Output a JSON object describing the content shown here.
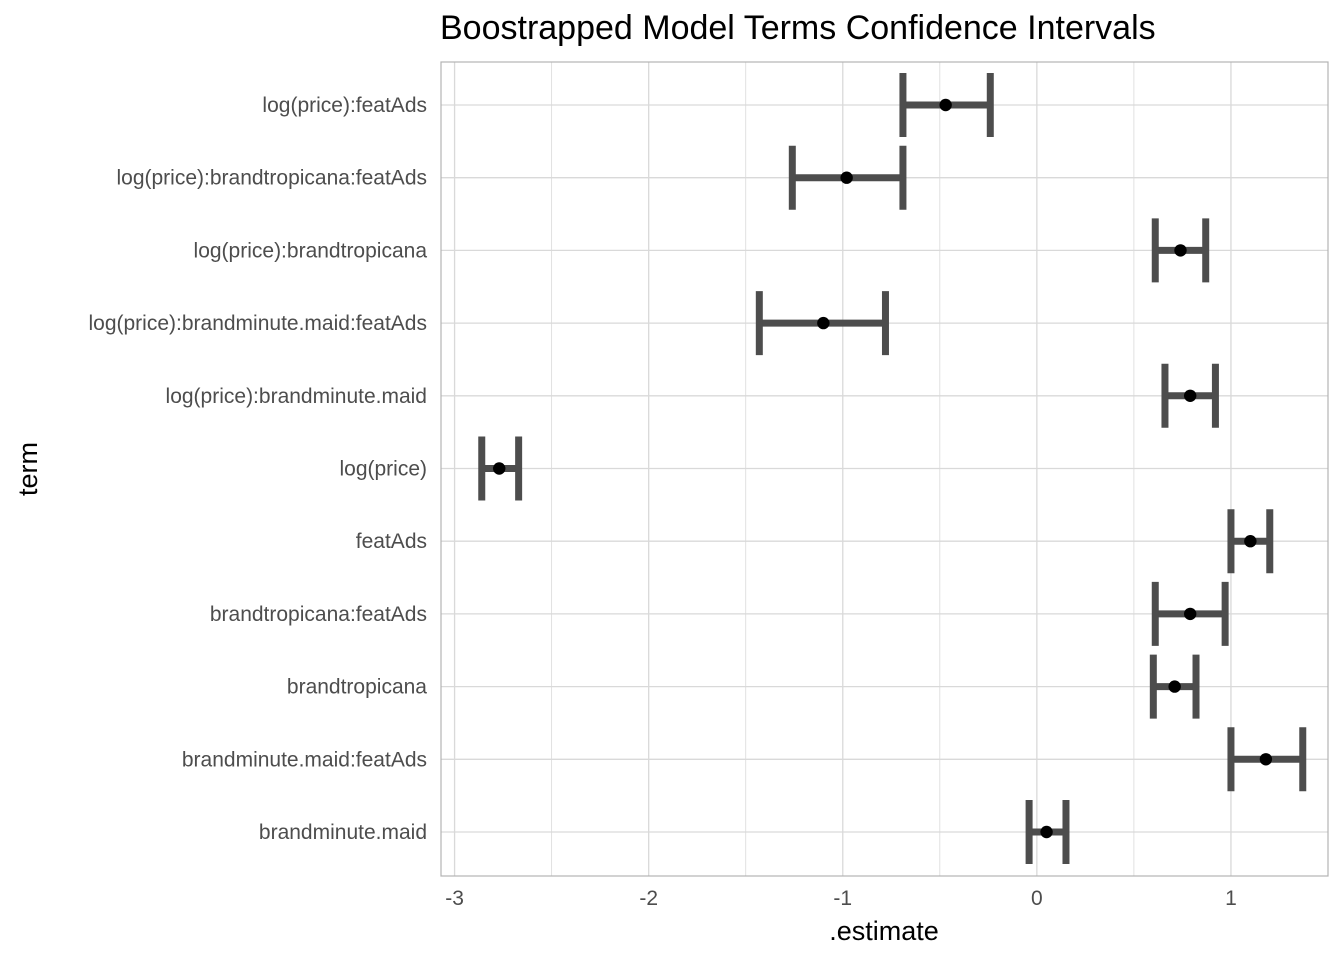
{
  "chart_data": {
    "type": "errorbar",
    "title": "Boostrapped Model Terms Confidence Intervals",
    "xlabel": ".estimate",
    "ylabel": "term",
    "xlim": [
      -3.07,
      1.5
    ],
    "x_ticks": [
      -3,
      -2,
      -1,
      0,
      1
    ],
    "x_tick_labels": [
      "-3",
      "-2",
      "-1",
      "0",
      "1"
    ],
    "grid": true,
    "colors": {
      "bar": "#4d4d4d",
      "point": "#000000",
      "grid": "#d9d9d9",
      "panel_border": "#b3b3b3"
    },
    "terms": [
      "log(price):featAds",
      "log(price):brandtropicana:featAds",
      "log(price):brandtropicana",
      "log(price):brandminute.maid:featAds",
      "log(price):brandminute.maid",
      "log(price)",
      "featAds",
      "brandtropicana:featAds",
      "brandtropicana",
      "brandminute.maid:featAds",
      "brandminute.maid"
    ],
    "estimates": [
      -0.47,
      -0.98,
      0.74,
      -1.1,
      0.79,
      -2.77,
      1.1,
      0.79,
      0.71,
      1.18,
      0.05
    ],
    "lower": [
      -0.69,
      -1.26,
      0.61,
      -1.43,
      0.66,
      -2.86,
      1.0,
      0.61,
      0.6,
      1.0,
      -0.04
    ],
    "upper": [
      -0.24,
      -0.69,
      0.87,
      -0.78,
      0.92,
      -2.67,
      1.2,
      0.97,
      0.82,
      1.37,
      0.15
    ]
  }
}
